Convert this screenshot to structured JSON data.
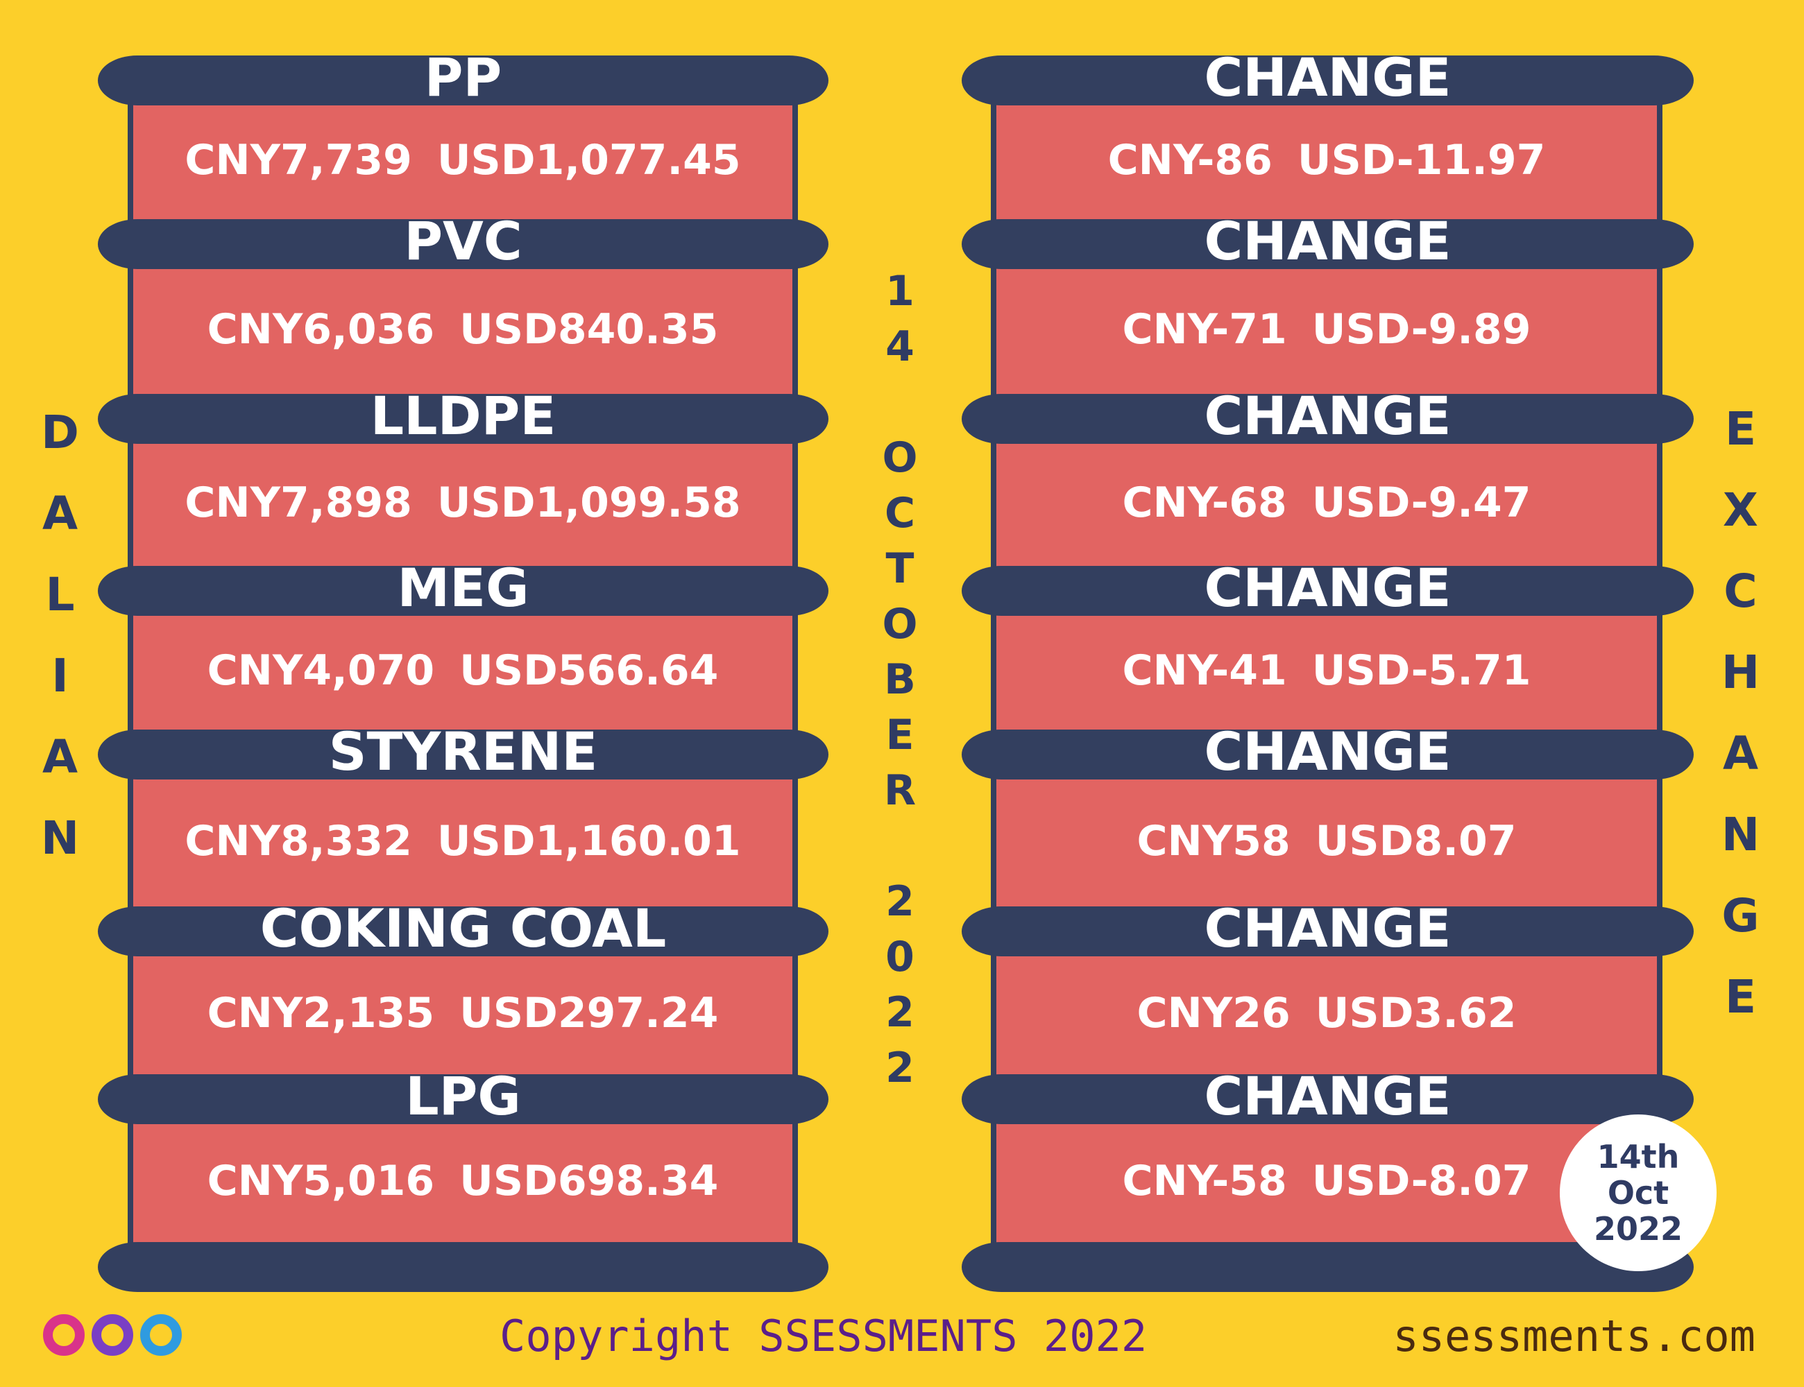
{
  "left": {
    "items": [
      {
        "name": "PP",
        "cny": "CNY7,739",
        "usd": "USD1,077.45"
      },
      {
        "name": "PVC",
        "cny": "CNY6,036",
        "usd": "USD840.35"
      },
      {
        "name": "LLDPE",
        "cny": "CNY7,898",
        "usd": "USD1,099.58"
      },
      {
        "name": "MEG",
        "cny": "CNY4,070",
        "usd": "USD566.64"
      },
      {
        "name": "STYRENE",
        "cny": "CNY8,332",
        "usd": "USD1,160.01"
      },
      {
        "name": "COKING COAL",
        "cny": "CNY2,135",
        "usd": "USD297.24"
      },
      {
        "name": "LPG",
        "cny": "CNY5,016",
        "usd": "USD698.34"
      }
    ]
  },
  "right": {
    "items": [
      {
        "label": "CHANGE",
        "cny": "CNY-86",
        "usd": "USD-11.97"
      },
      {
        "label": "CHANGE",
        "cny": "CNY-71",
        "usd": "USD-9.89"
      },
      {
        "label": "CHANGE",
        "cny": "CNY-68",
        "usd": "USD-9.47"
      },
      {
        "label": "CHANGE",
        "cny": "CNY-41",
        "usd": "USD-5.71"
      },
      {
        "label": "CHANGE",
        "cny": "CNY58",
        "usd": "USD8.07"
      },
      {
        "label": "CHANGE",
        "cny": "CNY26",
        "usd": "USD3.62"
      },
      {
        "label": "CHANGE",
        "cny": "CNY-58",
        "usd": "USD-8.07"
      }
    ]
  },
  "side_labels": {
    "left": "DALIAN",
    "center": "14 OCTOBER 2022",
    "right": "EXCHANGE"
  },
  "badge": {
    "lines": [
      "14th",
      "Oct",
      "2022"
    ]
  },
  "footer": {
    "copyright": "Copyright SSESSMENTS 2022",
    "website": "ssessments.com"
  }
}
